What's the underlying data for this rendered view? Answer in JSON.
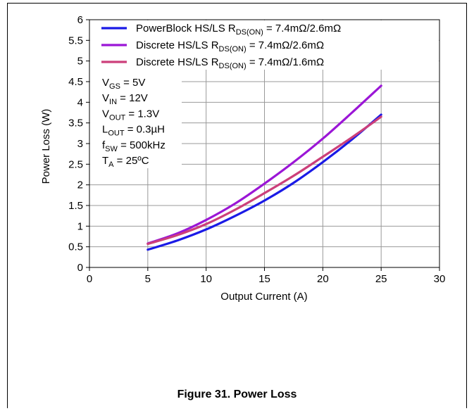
{
  "figure": {
    "caption": "Figure 31. Power Loss"
  },
  "colors": {
    "blue": "#1a1ae6",
    "purple": "#9b16d6",
    "pink": "#cc3f7a",
    "grid": "#999999"
  },
  "chart_data": {
    "type": "line",
    "title": "",
    "xlabel": "Output Current (A)",
    "ylabel": "Power Loss (W)",
    "xlim": [
      0,
      30
    ],
    "ylim": [
      0,
      6
    ],
    "xticks": [
      "0",
      "5",
      "10",
      "15",
      "20",
      "25",
      "30"
    ],
    "yticks": [
      "0",
      "0.5",
      "1",
      "1.5",
      "2",
      "2.5",
      "3",
      "3.5",
      "4",
      "4.5",
      "5",
      "5.5",
      "6"
    ],
    "grid": true,
    "legend_position": "top",
    "series": [
      {
        "name": "PowerBlock HS/LS RDS(ON) = 7.4mΩ/2.6mΩ",
        "legend": {
          "pre": "PowerBlock  HS/LS R",
          "sub": "DS(ON)",
          "post": " = 7.4mΩ/2.6mΩ"
        },
        "color": "#1a1ae6",
        "x": [
          5,
          7.5,
          10,
          12.5,
          15,
          17.5,
          20,
          22.5,
          25
        ],
        "y": [
          0.43,
          0.65,
          0.92,
          1.25,
          1.62,
          2.05,
          2.55,
          3.1,
          3.7
        ]
      },
      {
        "name": "Discrete HS/LS RDS(ON) = 7.4mΩ/2.6mΩ",
        "legend": {
          "pre": "Discrete  HS/LS R",
          "sub": "DS(ON)",
          "post": " = 7.4mΩ/2.6mΩ"
        },
        "color": "#9b16d6",
        "x": [
          5,
          7.5,
          10,
          12.5,
          15,
          17.5,
          20,
          22.5,
          25
        ],
        "y": [
          0.58,
          0.82,
          1.15,
          1.55,
          2.03,
          2.55,
          3.12,
          3.75,
          4.4
        ]
      },
      {
        "name": "Discrete HS/LS RDS(ON) = 7.4mΩ/1.6mΩ",
        "legend": {
          "pre": "Discrete  HS/LS R",
          "sub": "DS(ON)",
          "post": " = 7.4mΩ/1.6mΩ"
        },
        "color": "#cc3f7a",
        "x": [
          5,
          7.5,
          10,
          12.5,
          15,
          17.5,
          20,
          22.5,
          25
        ],
        "y": [
          0.57,
          0.78,
          1.05,
          1.4,
          1.8,
          2.22,
          2.68,
          3.15,
          3.65
        ]
      }
    ],
    "conditions": [
      {
        "pre": "V",
        "sub": "GS",
        "post": " = 5V"
      },
      {
        "pre": "V",
        "sub": "IN",
        "post": " = 12V"
      },
      {
        "pre": "V",
        "sub": "OUT",
        "post": " = 1.3V"
      },
      {
        "pre": "L",
        "sub": "OUT",
        "post": " = 0.3µH"
      },
      {
        "pre": "f",
        "sub": "SW",
        "post": " = 500kHz"
      },
      {
        "pre": "T",
        "sub": "A",
        "post": " = 25ºC"
      }
    ]
  }
}
